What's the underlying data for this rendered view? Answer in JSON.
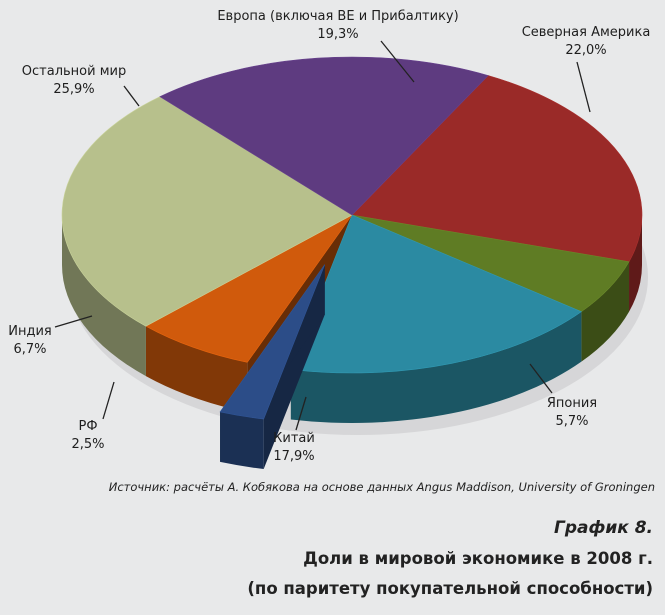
{
  "chart_data": {
    "type": "pie",
    "categories": [
      "Северная Америка",
      "Япония",
      "Китай",
      "РФ",
      "Индия",
      "Остальной мир",
      "Европа (включая ВЕ и Прибалтику)"
    ],
    "values": [
      22.0,
      5.7,
      17.9,
      2.5,
      6.7,
      25.9,
      19.3
    ],
    "value_labels": [
      "22,0%",
      "5,7%",
      "17,9%",
      "2,5%",
      "6,7%",
      "25,9%",
      "19,3%"
    ],
    "colors": [
      "#9a2a28",
      "#5f7c24",
      "#2b8aa2",
      "#2c4d88",
      "#d05a0c",
      "#b7c08c",
      "#5e3b80"
    ],
    "exploded": "РФ",
    "style": "3d"
  },
  "labels": {
    "na": {
      "name": "Северная Америка",
      "value": "22,0%"
    },
    "jp": {
      "name": "Япония",
      "value": "5,7%"
    },
    "cn": {
      "name": "Китай",
      "value": "17,9%"
    },
    "rf": {
      "name": "РФ",
      "value": "2,5%"
    },
    "in": {
      "name": "Индия",
      "value": "6,7%"
    },
    "row": {
      "name": "Остальной мир",
      "value": "25,9%"
    },
    "eu": {
      "name": "Европа (включая ВЕ и Прибалтику)",
      "value": "19,3%"
    }
  },
  "source": "Источник: расчёты А. Кобякова на основе данных Angus Maddison, University of Groningen",
  "figure_number": "График 8.",
  "title_line1": "Доли в мировой экономике в 2008 г.",
  "title_line2": "(по паритету покупательной способности)"
}
